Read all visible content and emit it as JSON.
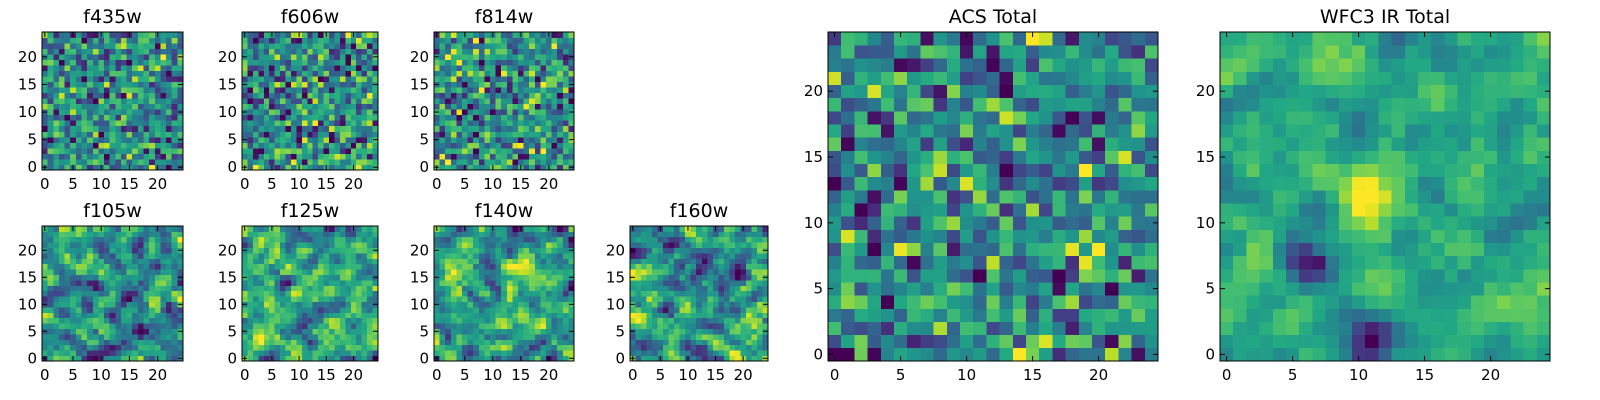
{
  "chart_data": [
    {
      "type": "heatmap",
      "title": "f435w",
      "grid_size": 25,
      "xticks": [
        0,
        5,
        10,
        15,
        20
      ],
      "yticks": [
        0,
        5,
        10,
        15,
        20
      ],
      "xlim": [
        -0.5,
        24.5
      ],
      "ylim": [
        -0.5,
        24.5
      ],
      "colormap": "viridis",
      "texture": "noise",
      "seed": 11
    },
    {
      "type": "heatmap",
      "title": "f606w",
      "grid_size": 25,
      "xticks": [
        0,
        5,
        10,
        15,
        20
      ],
      "yticks": [
        0,
        5,
        10,
        15,
        20
      ],
      "xlim": [
        -0.5,
        24.5
      ],
      "ylim": [
        -0.5,
        24.5
      ],
      "colormap": "viridis",
      "texture": "noise",
      "seed": 23
    },
    {
      "type": "heatmap",
      "title": "f814w",
      "grid_size": 25,
      "xticks": [
        0,
        5,
        10,
        15,
        20
      ],
      "yticks": [
        0,
        5,
        10,
        15,
        20
      ],
      "xlim": [
        -0.5,
        24.5
      ],
      "ylim": [
        -0.5,
        24.5
      ],
      "colormap": "viridis",
      "texture": "noise",
      "seed": 37
    },
    {
      "type": "heatmap",
      "title": "f105w",
      "grid_size": 25,
      "xticks": [
        0,
        5,
        10,
        15,
        20
      ],
      "yticks": [
        0,
        5,
        10,
        15,
        20
      ],
      "xlim": [
        -0.5,
        24.5
      ],
      "ylim": [
        -0.5,
        24.5
      ],
      "colormap": "viridis",
      "texture": "smooth",
      "seed": 41
    },
    {
      "type": "heatmap",
      "title": "f125w",
      "grid_size": 25,
      "xticks": [
        0,
        5,
        10,
        15,
        20
      ],
      "yticks": [
        0,
        5,
        10,
        15,
        20
      ],
      "xlim": [
        -0.5,
        24.5
      ],
      "ylim": [
        -0.5,
        24.5
      ],
      "colormap": "viridis",
      "texture": "smooth",
      "seed": 53
    },
    {
      "type": "heatmap",
      "title": "f140w",
      "grid_size": 25,
      "xticks": [
        0,
        5,
        10,
        15,
        20
      ],
      "yticks": [
        0,
        5,
        10,
        15,
        20
      ],
      "xlim": [
        -0.5,
        24.5
      ],
      "ylim": [
        -0.5,
        24.5
      ],
      "colormap": "viridis",
      "texture": "smooth",
      "seed": 67
    },
    {
      "type": "heatmap",
      "title": "f160w",
      "grid_size": 25,
      "xticks": [
        0,
        5,
        10,
        15,
        20
      ],
      "yticks": [
        0,
        5,
        10,
        15,
        20
      ],
      "xlim": [
        -0.5,
        24.5
      ],
      "ylim": [
        -0.5,
        24.5
      ],
      "colormap": "viridis",
      "texture": "smooth",
      "seed": 79
    },
    {
      "type": "heatmap",
      "title": "ACS Total",
      "grid_size": 25,
      "xticks": [
        0,
        5,
        10,
        15,
        20
      ],
      "yticks": [
        0,
        5,
        10,
        15,
        20
      ],
      "xlim": [
        -0.5,
        24.5
      ],
      "ylim": [
        -0.5,
        24.5
      ],
      "colormap": "viridis",
      "texture": "noise",
      "seed": 97
    },
    {
      "type": "heatmap",
      "title": "WFC3 IR Total",
      "grid_size": 25,
      "xticks": [
        0,
        5,
        10,
        15,
        20
      ],
      "yticks": [
        0,
        5,
        10,
        15,
        20
      ],
      "xlim": [
        -0.5,
        24.5
      ],
      "ylim": [
        -0.5,
        24.5
      ],
      "colormap": "viridis",
      "texture": "smooth",
      "seed": 101,
      "features": [
        {
          "x": 11,
          "y": 12,
          "sign": 1
        },
        {
          "x": 6,
          "y": 7,
          "sign": -1
        },
        {
          "x": 11,
          "y": 1,
          "sign": -1
        }
      ]
    }
  ]
}
